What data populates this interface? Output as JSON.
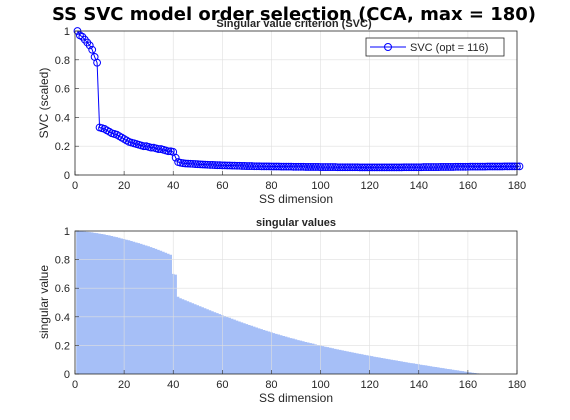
{
  "figure_title": "SS SVC model order selection (CCA, max = 180)",
  "chart_data": [
    {
      "type": "line",
      "title": "Singular value criterion (SVC)",
      "xlabel": "SS dimension",
      "ylabel": "SVC (scaled)",
      "xlim": [
        0,
        180
      ],
      "ylim": [
        0,
        1
      ],
      "xticks": [
        "0",
        "20",
        "40",
        "60",
        "80",
        "100",
        "120",
        "140",
        "160",
        "180"
      ],
      "yticks": [
        "0",
        "0.2",
        "0.4",
        "0.6",
        "0.8",
        "1"
      ],
      "grid": true,
      "legend_position": "top-right",
      "color": "#0000ff",
      "series": [
        {
          "name": "SVC (opt = 116)",
          "x_start": 1,
          "values": [
            1.0,
            0.97,
            0.96,
            0.94,
            0.92,
            0.9,
            0.87,
            0.82,
            0.78,
            0.33,
            0.325,
            0.32,
            0.31,
            0.3,
            0.29,
            0.285,
            0.28,
            0.27,
            0.26,
            0.25,
            0.24,
            0.23,
            0.225,
            0.22,
            0.215,
            0.21,
            0.205,
            0.2,
            0.2,
            0.195,
            0.19,
            0.19,
            0.185,
            0.18,
            0.18,
            0.175,
            0.17,
            0.165,
            0.165,
            0.16,
            0.12,
            0.09,
            0.085,
            0.082,
            0.08,
            0.079,
            0.078,
            0.077,
            0.076,
            0.075,
            0.074,
            0.073,
            0.072,
            0.071,
            0.07,
            0.07,
            0.069,
            0.068,
            0.068,
            0.067,
            0.067,
            0.066,
            0.066,
            0.065,
            0.065,
            0.064,
            0.064,
            0.063,
            0.063,
            0.062,
            0.062,
            0.062,
            0.061,
            0.061,
            0.061,
            0.06,
            0.06,
            0.06,
            0.06,
            0.059,
            0.059,
            0.059,
            0.059,
            0.058,
            0.058,
            0.058,
            0.058,
            0.058,
            0.057,
            0.057,
            0.057,
            0.057,
            0.057,
            0.056,
            0.056,
            0.056,
            0.056,
            0.056,
            0.056,
            0.055,
            0.055,
            0.055,
            0.055,
            0.055,
            0.055,
            0.055,
            0.054,
            0.054,
            0.054,
            0.054,
            0.054,
            0.054,
            0.054,
            0.054,
            0.054,
            0.053,
            0.053,
            0.053,
            0.053,
            0.053,
            0.053,
            0.053,
            0.053,
            0.053,
            0.053,
            0.053,
            0.053,
            0.053,
            0.053,
            0.053,
            0.053,
            0.053,
            0.053,
            0.054,
            0.054,
            0.054,
            0.054,
            0.054,
            0.054,
            0.054,
            0.054,
            0.055,
            0.055,
            0.055,
            0.055,
            0.055,
            0.055,
            0.055,
            0.056,
            0.056,
            0.056,
            0.056,
            0.056,
            0.056,
            0.057,
            0.057,
            0.057,
            0.057,
            0.057,
            0.057,
            0.058,
            0.058,
            0.058,
            0.058,
            0.058,
            0.058,
            0.058,
            0.059,
            0.059,
            0.059,
            0.059,
            0.059,
            0.059,
            0.059,
            0.06,
            0.06,
            0.06,
            0.06,
            0.06,
            0.06,
            0.06
          ]
        }
      ]
    },
    {
      "type": "area",
      "title": "singular values",
      "xlabel": "SS dimension",
      "ylabel": "singular value",
      "xlim": [
        0,
        180
      ],
      "ylim": [
        0,
        1
      ],
      "xticks": [
        "0",
        "20",
        "40",
        "60",
        "80",
        "100",
        "120",
        "140",
        "160",
        "180"
      ],
      "yticks": [
        "0",
        "0.2",
        "0.4",
        "0.6",
        "0.8",
        "1"
      ],
      "grid": true,
      "color": "#a6bff7",
      "x_start": 1,
      "values": [
        1.0,
        0.999,
        0.998,
        0.996,
        0.994,
        0.992,
        0.99,
        0.987,
        0.985,
        0.982,
        0.979,
        0.976,
        0.972,
        0.969,
        0.965,
        0.961,
        0.957,
        0.953,
        0.948,
        0.944,
        0.939,
        0.935,
        0.93,
        0.925,
        0.92,
        0.915,
        0.91,
        0.904,
        0.899,
        0.893,
        0.887,
        0.881,
        0.875,
        0.868,
        0.862,
        0.855,
        0.848,
        0.841,
        0.834,
        0.7,
        0.695,
        0.54,
        0.53,
        0.523,
        0.516,
        0.509,
        0.502,
        0.495,
        0.488,
        0.481,
        0.474,
        0.467,
        0.46,
        0.453,
        0.446,
        0.439,
        0.432,
        0.426,
        0.419,
        0.412,
        0.406,
        0.399,
        0.393,
        0.386,
        0.38,
        0.373,
        0.367,
        0.361,
        0.355,
        0.349,
        0.343,
        0.337,
        0.331,
        0.325,
        0.319,
        0.314,
        0.308,
        0.302,
        0.297,
        0.292,
        0.286,
        0.281,
        0.276,
        0.271,
        0.266,
        0.261,
        0.256,
        0.251,
        0.247,
        0.242,
        0.237,
        0.233,
        0.229,
        0.224,
        0.22,
        0.216,
        0.212,
        0.207,
        0.203,
        0.199,
        0.195,
        0.191,
        0.188,
        0.184,
        0.18,
        0.176,
        0.172,
        0.169,
        0.165,
        0.162,
        0.158,
        0.155,
        0.151,
        0.148,
        0.144,
        0.141,
        0.138,
        0.134,
        0.131,
        0.128,
        0.125,
        0.121,
        0.118,
        0.115,
        0.112,
        0.109,
        0.106,
        0.103,
        0.1,
        0.097,
        0.094,
        0.091,
        0.088,
        0.085,
        0.082,
        0.079,
        0.076,
        0.074,
        0.071,
        0.068,
        0.065,
        0.062,
        0.06,
        0.057,
        0.054,
        0.051,
        0.049,
        0.046,
        0.043,
        0.041,
        0.038,
        0.035,
        0.033,
        0.03,
        0.027,
        0.025,
        0.022,
        0.02,
        0.017,
        0.014,
        0.012,
        0.009,
        0.007,
        0.004,
        0.002,
        0.0
      ]
    }
  ]
}
